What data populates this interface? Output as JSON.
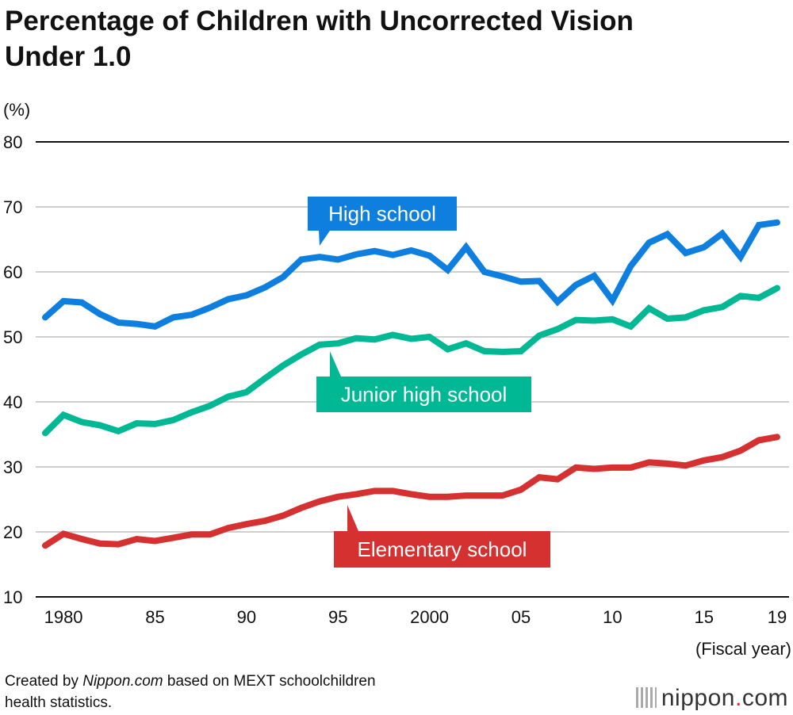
{
  "title_line1": "Percentage of Children with Uncorrected Vision",
  "title_line2": "Under 1.0",
  "footer": {
    "prefix": "Created by ",
    "site": "Nippon.com",
    "suffix": " based on MEXT schoolchildren",
    "line2": "health statistics."
  },
  "logo": {
    "text": "nippon",
    "dot": ".",
    "tld": "com"
  },
  "chart_data": {
    "type": "line",
    "title": "Percentage of Children with Uncorrected Vision Under 1.0",
    "ylabel": "(%)",
    "xlabel": "(Fiscal year)",
    "ylim": [
      10,
      80
    ],
    "xlim": [
      1979,
      2019
    ],
    "yticks": [
      10,
      20,
      30,
      40,
      50,
      60,
      70,
      80
    ],
    "xticks": [
      {
        "value": 1980,
        "label": "1980"
      },
      {
        "value": 1985,
        "label": "85"
      },
      {
        "value": 1990,
        "label": "90"
      },
      {
        "value": 1995,
        "label": "95"
      },
      {
        "value": 2000,
        "label": "2000"
      },
      {
        "value": 2005,
        "label": "05"
      },
      {
        "value": 2010,
        "label": "10"
      },
      {
        "value": 2015,
        "label": "15"
      },
      {
        "value": 2019,
        "label": "19"
      }
    ],
    "grid": true,
    "x": [
      1979,
      1980,
      1981,
      1982,
      1983,
      1984,
      1985,
      1986,
      1987,
      1988,
      1989,
      1990,
      1991,
      1992,
      1993,
      1994,
      1995,
      1996,
      1997,
      1998,
      1999,
      2000,
      2001,
      2002,
      2003,
      2004,
      2005,
      2006,
      2007,
      2008,
      2009,
      2010,
      2011,
      2012,
      2013,
      2014,
      2015,
      2016,
      2017,
      2018,
      2019
    ],
    "series": [
      {
        "name": "High school",
        "color": "#0f7fdf",
        "label_anchor_year": 1994,
        "values": [
          53.0,
          55.5,
          55.3,
          53.5,
          52.2,
          52.0,
          51.6,
          53.0,
          53.4,
          54.5,
          55.8,
          56.4,
          57.6,
          59.2,
          61.9,
          62.3,
          61.9,
          62.7,
          63.2,
          62.6,
          63.3,
          62.5,
          60.3,
          63.8,
          60.0,
          59.3,
          58.5,
          58.6,
          55.4,
          58.0,
          59.4,
          55.6,
          60.9,
          64.5,
          65.8,
          62.9,
          63.8,
          65.9,
          62.3,
          67.2,
          67.6
        ]
      },
      {
        "name": "Junior high school",
        "color": "#00b894",
        "label_anchor_year": 1994,
        "values": [
          35.2,
          38.0,
          36.9,
          36.4,
          35.5,
          36.7,
          36.6,
          37.2,
          38.4,
          39.4,
          40.8,
          41.5,
          43.6,
          45.6,
          47.3,
          48.8,
          49.0,
          49.8,
          49.6,
          50.3,
          49.7,
          50.0,
          48.1,
          49.0,
          47.8,
          47.7,
          47.8,
          50.2,
          51.2,
          52.6,
          52.5,
          52.7,
          51.6,
          54.4,
          52.8,
          53.0,
          54.1,
          54.6,
          56.3,
          56.0,
          57.5
        ]
      },
      {
        "name": "Elementary school",
        "color": "#d63131",
        "label_anchor_year": 1995,
        "values": [
          17.9,
          19.7,
          18.9,
          18.2,
          18.1,
          18.9,
          18.6,
          19.1,
          19.6,
          19.6,
          20.6,
          21.2,
          21.7,
          22.5,
          23.7,
          24.7,
          25.4,
          25.8,
          26.3,
          26.3,
          25.8,
          25.4,
          25.4,
          25.6,
          25.6,
          25.6,
          26.5,
          28.4,
          28.1,
          29.9,
          29.7,
          29.9,
          29.9,
          30.7,
          30.5,
          30.2,
          31.0,
          31.5,
          32.5,
          34.1,
          34.6
        ]
      }
    ]
  }
}
